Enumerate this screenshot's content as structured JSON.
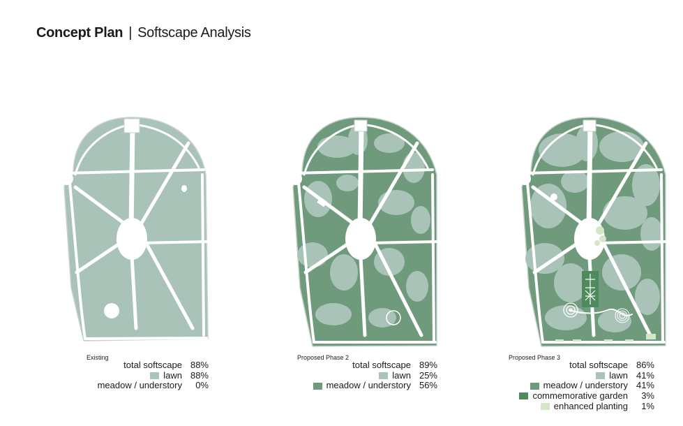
{
  "title": {
    "main": "Concept Plan",
    "separator": "|",
    "sub": "Softscape Analysis"
  },
  "colors": {
    "lawn": "#a9c3b8",
    "meadow": "#6f9a7c",
    "commemorative": "#4f8a5c",
    "enhanced": "#d5e6c8",
    "path": "#ffffff",
    "outline": "#c8d2cc"
  },
  "panels": [
    {
      "caption": "Existing",
      "base_color": "lawn",
      "rows": [
        {
          "label": "total softscape",
          "value": "88%",
          "swatch": ""
        },
        {
          "label": "lawn",
          "value": "88%",
          "swatch": "lawn"
        },
        {
          "label": "meadow / understory",
          "value": "0%",
          "swatch": ""
        }
      ]
    },
    {
      "caption": "Proposed Phase 2",
      "base_color": "meadow",
      "rows": [
        {
          "label": "total softscape",
          "value": "89%",
          "swatch": ""
        },
        {
          "label": "lawn",
          "value": "25%",
          "swatch": "lawn"
        },
        {
          "label": "meadow / understory",
          "value": "56%",
          "swatch": "meadow"
        }
      ]
    },
    {
      "caption": "Proposed Phase 3",
      "base_color": "meadow",
      "rows": [
        {
          "label": "total softscape",
          "value": "86%",
          "swatch": ""
        },
        {
          "label": "lawn",
          "value": "41%",
          "swatch": "lawn"
        },
        {
          "label": "meadow / understory",
          "value": "41%",
          "swatch": "meadow"
        },
        {
          "label": "commemorative garden",
          "value": "3%",
          "swatch": "commemorative"
        },
        {
          "label": "enhanced planting",
          "value": "1%",
          "swatch": "enhanced"
        }
      ]
    }
  ]
}
